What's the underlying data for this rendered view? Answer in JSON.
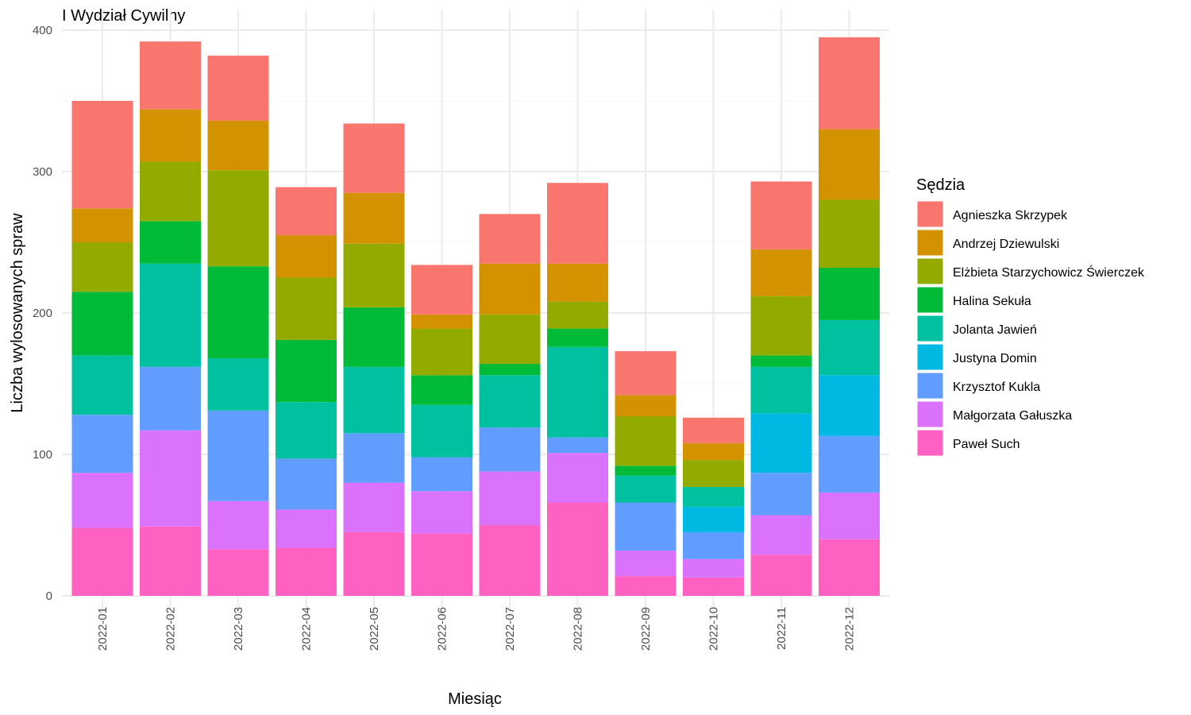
{
  "chart_data": {
    "type": "bar",
    "stacked": true,
    "title": "I Wydział Cywilny",
    "xlabel": "Miesiąc",
    "ylabel": "Liczba wylosowanych spraw",
    "ylim": [
      0,
      400
    ],
    "yticks": [
      0,
      100,
      200,
      300,
      400
    ],
    "grid": true,
    "legend_title": "Sędzia",
    "legend_position": "right",
    "categories": [
      "2022-01",
      "2022-02",
      "2022-03",
      "2022-04",
      "2022-05",
      "2022-06",
      "2022-07",
      "2022-08",
      "2022-09",
      "2022-10",
      "2022-11",
      "2022-12"
    ],
    "series": [
      {
        "name": "Paweł Such",
        "color": "#FF61C3",
        "values": [
          48,
          49,
          33,
          34,
          45,
          44,
          50,
          66,
          14,
          13,
          29,
          40
        ]
      },
      {
        "name": "Małgorzata Gałuszka",
        "color": "#DB72FB",
        "values": [
          39,
          68,
          34,
          27,
          35,
          30,
          38,
          35,
          18,
          13,
          28,
          33
        ]
      },
      {
        "name": "Krzysztof Kukla",
        "color": "#619CFF",
        "values": [
          41,
          45,
          64,
          36,
          35,
          24,
          31,
          11,
          34,
          19,
          30,
          40
        ]
      },
      {
        "name": "Justyna Domin",
        "color": "#00B9E3",
        "values": [
          0,
          0,
          0,
          0,
          0,
          0,
          0,
          0,
          0,
          18,
          42,
          43
        ]
      },
      {
        "name": "Jolanta Jawień",
        "color": "#00C19F",
        "values": [
          42,
          73,
          37,
          40,
          47,
          37,
          37,
          64,
          19,
          14,
          33,
          39
        ]
      },
      {
        "name": "Halina Sekuła",
        "color": "#00BA38",
        "values": [
          45,
          30,
          65,
          44,
          42,
          21,
          8,
          13,
          7,
          0,
          8,
          37
        ]
      },
      {
        "name": "Elżbieta Starzychowicz Świerczek",
        "color": "#93AA00",
        "values": [
          35,
          42,
          68,
          44,
          45,
          33,
          35,
          19,
          35,
          19,
          42,
          48
        ]
      },
      {
        "name": "Andrzej Dziewulski",
        "color": "#D39200",
        "values": [
          24,
          37,
          35,
          30,
          36,
          10,
          36,
          27,
          15,
          12,
          33,
          50
        ]
      },
      {
        "name": "Agnieszka Skrzypek",
        "color": "#F8766D",
        "values": [
          76,
          48,
          46,
          34,
          49,
          35,
          35,
          57,
          31,
          18,
          48,
          65
        ]
      }
    ],
    "legend_order": [
      "Agnieszka Skrzypek",
      "Andrzej Dziewulski",
      "Elżbieta Starzychowicz Świerczek",
      "Halina Sekuła",
      "Jolanta Jawień",
      "Justyna Domin",
      "Krzysztof Kukla",
      "Małgorzata Gałuszka",
      "Paweł Such"
    ]
  }
}
